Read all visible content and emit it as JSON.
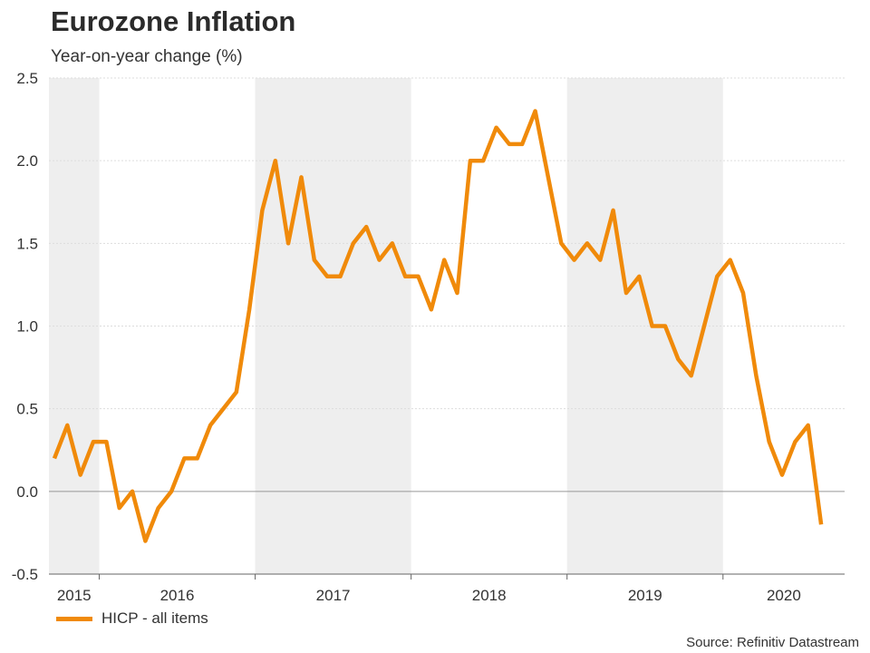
{
  "title": "Eurozone Inflation",
  "subtitle": "Year-on-year change (%)",
  "source": "Source: Refinitiv Datastream",
  "colors": {
    "line": "#f08a0a",
    "band": "#eeeeee",
    "grid": "#dddddd",
    "zero_line": "#999999",
    "axis": "#666666"
  },
  "chart_data": {
    "type": "line",
    "title": "Eurozone Inflation",
    "subtitle": "Year-on-year change (%)",
    "xlabel": "",
    "ylabel": "",
    "ylim": [
      -0.5,
      2.5
    ],
    "y_ticks": [
      "-0.5",
      "0.0",
      "0.5",
      "1.0",
      "1.5",
      "2.0",
      "2.5"
    ],
    "x_ticks": [
      "2015",
      "2016",
      "2017",
      "2018",
      "2019",
      "2020"
    ],
    "grid": true,
    "shaded_years": [
      "2015",
      "2017",
      "2019"
    ],
    "legend_position": "bottom-left",
    "series": [
      {
        "name": "HICP - all items",
        "x": [
          "2015-09",
          "2015-10",
          "2015-11",
          "2015-12",
          "2016-01",
          "2016-02",
          "2016-03",
          "2016-04",
          "2016-05",
          "2016-06",
          "2016-07",
          "2016-08",
          "2016-09",
          "2016-10",
          "2016-11",
          "2016-12",
          "2017-01",
          "2017-02",
          "2017-03",
          "2017-04",
          "2017-05",
          "2017-06",
          "2017-07",
          "2017-08",
          "2017-09",
          "2017-10",
          "2017-11",
          "2017-12",
          "2018-01",
          "2018-02",
          "2018-03",
          "2018-04",
          "2018-05",
          "2018-06",
          "2018-07",
          "2018-08",
          "2018-09",
          "2018-10",
          "2018-11",
          "2018-12",
          "2019-01",
          "2019-02",
          "2019-03",
          "2019-04",
          "2019-05",
          "2019-06",
          "2019-07",
          "2019-08",
          "2019-09",
          "2019-10",
          "2019-11",
          "2019-12",
          "2020-01",
          "2020-02",
          "2020-03",
          "2020-04",
          "2020-05",
          "2020-06",
          "2020-07",
          "2020-08"
        ],
        "values": [
          0.2,
          0.4,
          0.1,
          0.3,
          0.3,
          -0.1,
          0.0,
          -0.3,
          -0.1,
          0.0,
          0.2,
          0.2,
          0.4,
          0.5,
          0.6,
          1.1,
          1.7,
          2.0,
          1.5,
          1.9,
          1.4,
          1.3,
          1.3,
          1.5,
          1.6,
          1.4,
          1.5,
          1.3,
          1.3,
          1.1,
          1.4,
          1.2,
          2.0,
          2.0,
          2.2,
          2.1,
          2.1,
          2.3,
          1.9,
          1.5,
          1.4,
          1.5,
          1.4,
          1.7,
          1.2,
          1.3,
          1.0,
          1.0,
          0.8,
          0.7,
          1.0,
          1.3,
          1.4,
          1.2,
          0.7,
          0.3,
          0.1,
          0.3,
          0.4,
          -0.2
        ]
      }
    ]
  }
}
